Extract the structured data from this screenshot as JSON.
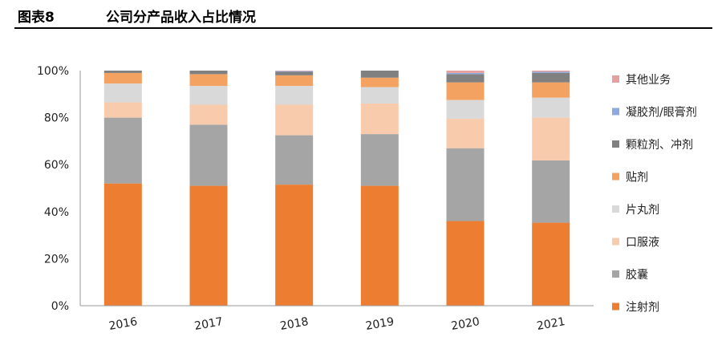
{
  "header": {
    "label": "图表8",
    "title": "公司分产品收入占比情况"
  },
  "chart_data": {
    "type": "bar",
    "stacked": true,
    "categories": [
      "2016",
      "2017",
      "2018",
      "2019",
      "2020",
      "2021"
    ],
    "yticks": [
      "0%",
      "20%",
      "40%",
      "60%",
      "80%",
      "100%"
    ],
    "ylim": [
      0,
      100
    ],
    "legend_position": "right",
    "series": [
      {
        "name": "注射剂",
        "color": "#ED7D31",
        "values": [
          52,
          51,
          51.5,
          51,
          36,
          35.3
        ]
      },
      {
        "name": "胶囊",
        "color": "#A5A5A5",
        "values": [
          28,
          26,
          21,
          22,
          31,
          26.5
        ]
      },
      {
        "name": "口服液",
        "color": "#F8CBAD",
        "values": [
          6.5,
          8.5,
          13,
          13,
          12.5,
          18.2
        ]
      },
      {
        "name": "片丸剂",
        "color": "#D9D9D9",
        "values": [
          8,
          8,
          8,
          7,
          8,
          8.5
        ]
      },
      {
        "name": "贴剂",
        "color": "#F4A261",
        "values": [
          4.5,
          5,
          4.5,
          4,
          7.5,
          6.5
        ]
      },
      {
        "name": "颗粒剂、冲剂",
        "color": "#808080",
        "values": [
          1,
          1.5,
          1.5,
          3,
          3.5,
          4
        ]
      },
      {
        "name": "凝胶剂/眼膏剂",
        "color": "#8EA9DB",
        "values": [
          0,
          0,
          0.3,
          0,
          0.5,
          0.5
        ]
      },
      {
        "name": "其他业务",
        "color": "#E6A0A0",
        "values": [
          0,
          0,
          0.2,
          0,
          1,
          0.5
        ]
      }
    ]
  }
}
